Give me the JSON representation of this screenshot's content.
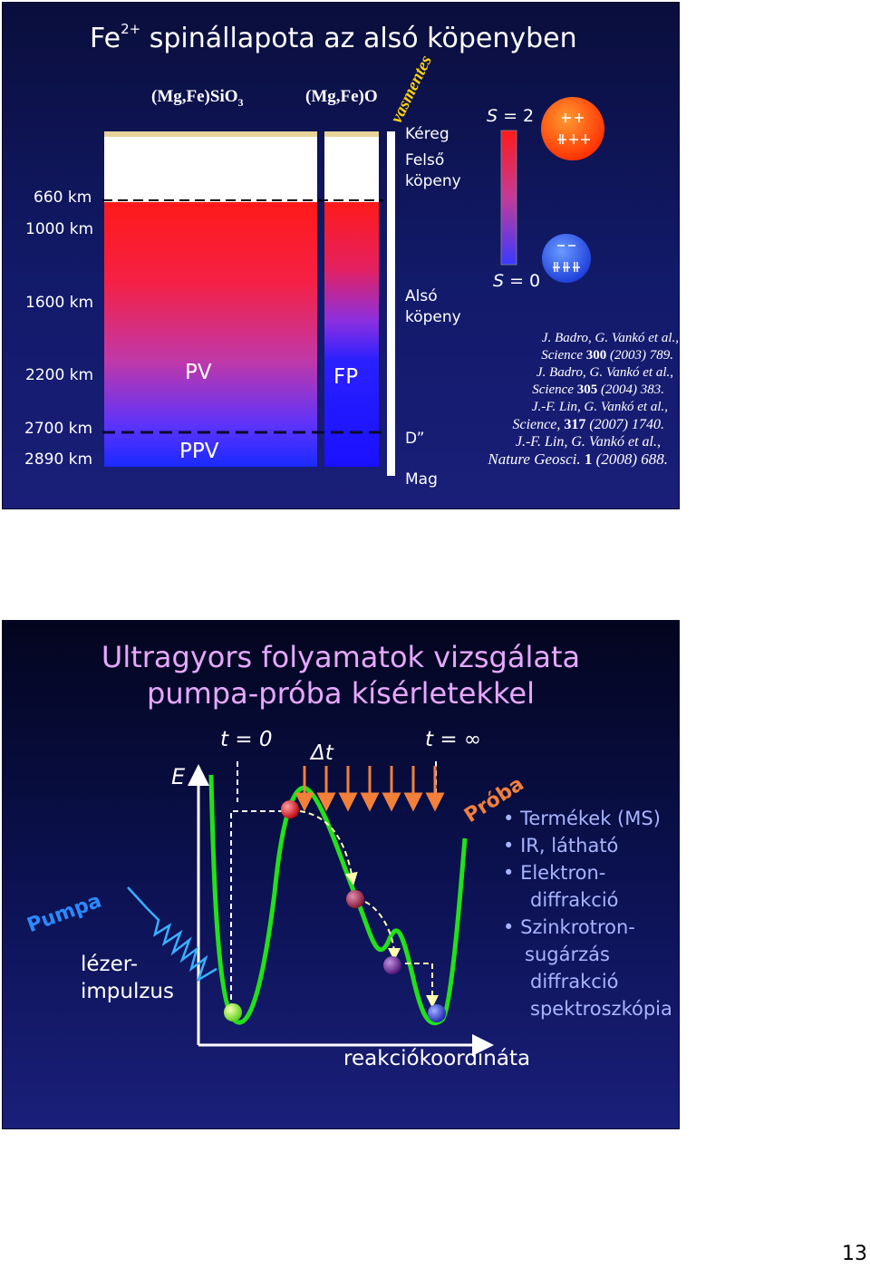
{
  "slide1": {
    "title_main": "Fe",
    "title_sup": "2+",
    "title_rest": " spinállapota az alsó köpenyben",
    "columns": {
      "sio3": "(Mg,Fe)SiO",
      "sio3_sub": "3",
      "mgfeo": "(Mg,Fe)O",
      "iron": "vasmentes"
    },
    "depths": [
      "660 km",
      "1000 km",
      "1600 km",
      "2200 km",
      "2700 km",
      "2890 km"
    ],
    "regions": {
      "kereg": "Kéreg",
      "felso_1": "Felső",
      "felso_2": "köpeny",
      "also_1": "Alsó",
      "also_2": "köpeny",
      "dprime": "D”",
      "mag": "Mag"
    },
    "phases": {
      "pv": "PV",
      "ppv": "PPV",
      "fp": "FP"
    },
    "spin": {
      "s_top_italic": "S",
      "s_top_val": " = 2",
      "s_bottom_italic": "S",
      "s_bottom_val": " = 0",
      "high_color": "#ff4a00",
      "low_color": "#2a55e8"
    },
    "references": [
      {
        "a": "J. Badro, G. Vankó ",
        "b": "et al.",
        "c": ","
      },
      {
        "a": "Science ",
        "b": "300",
        "c": " (2003) 789."
      },
      {
        "a": "J. Badro, G. Vankó ",
        "b": "et al.",
        "c": ","
      },
      {
        "a": "Science ",
        "b": "305",
        "c": " (2004) 383."
      },
      {
        "a": "J.-F. Lin, G. Vankó ",
        "b": "et al.",
        "c": ","
      },
      {
        "a": "Science, ",
        "b": "317",
        "c": " (2007) 1740."
      },
      {
        "a": "J.-F. Lin, G. Vankó ",
        "b": "et al.",
        "c": ","
      },
      {
        "a": "Nature Geosci. ",
        "b": "1",
        "c": " (2008) 688."
      }
    ]
  },
  "slide2": {
    "title_line1": "Ultragyors folyamatok vizsgálata",
    "title_line2": "pumpa-próba kísérletekkel",
    "t0": "t = 0",
    "dt": "Δt",
    "tinf": "t = ∞",
    "e_axis": "E",
    "x_axis": "reakciókoordináta",
    "pumpa": "Pumpa",
    "proba": "Próba",
    "laser_1": "lézer-",
    "laser_2": "impulzus",
    "bullets": [
      "Termékek (MS)",
      "IR, látható",
      "Elektron-",
      "diffrakció",
      "Szinkrotron-",
      "sugárzás",
      "diffrakció",
      "spektroszkópia"
    ]
  },
  "page_number": "13"
}
